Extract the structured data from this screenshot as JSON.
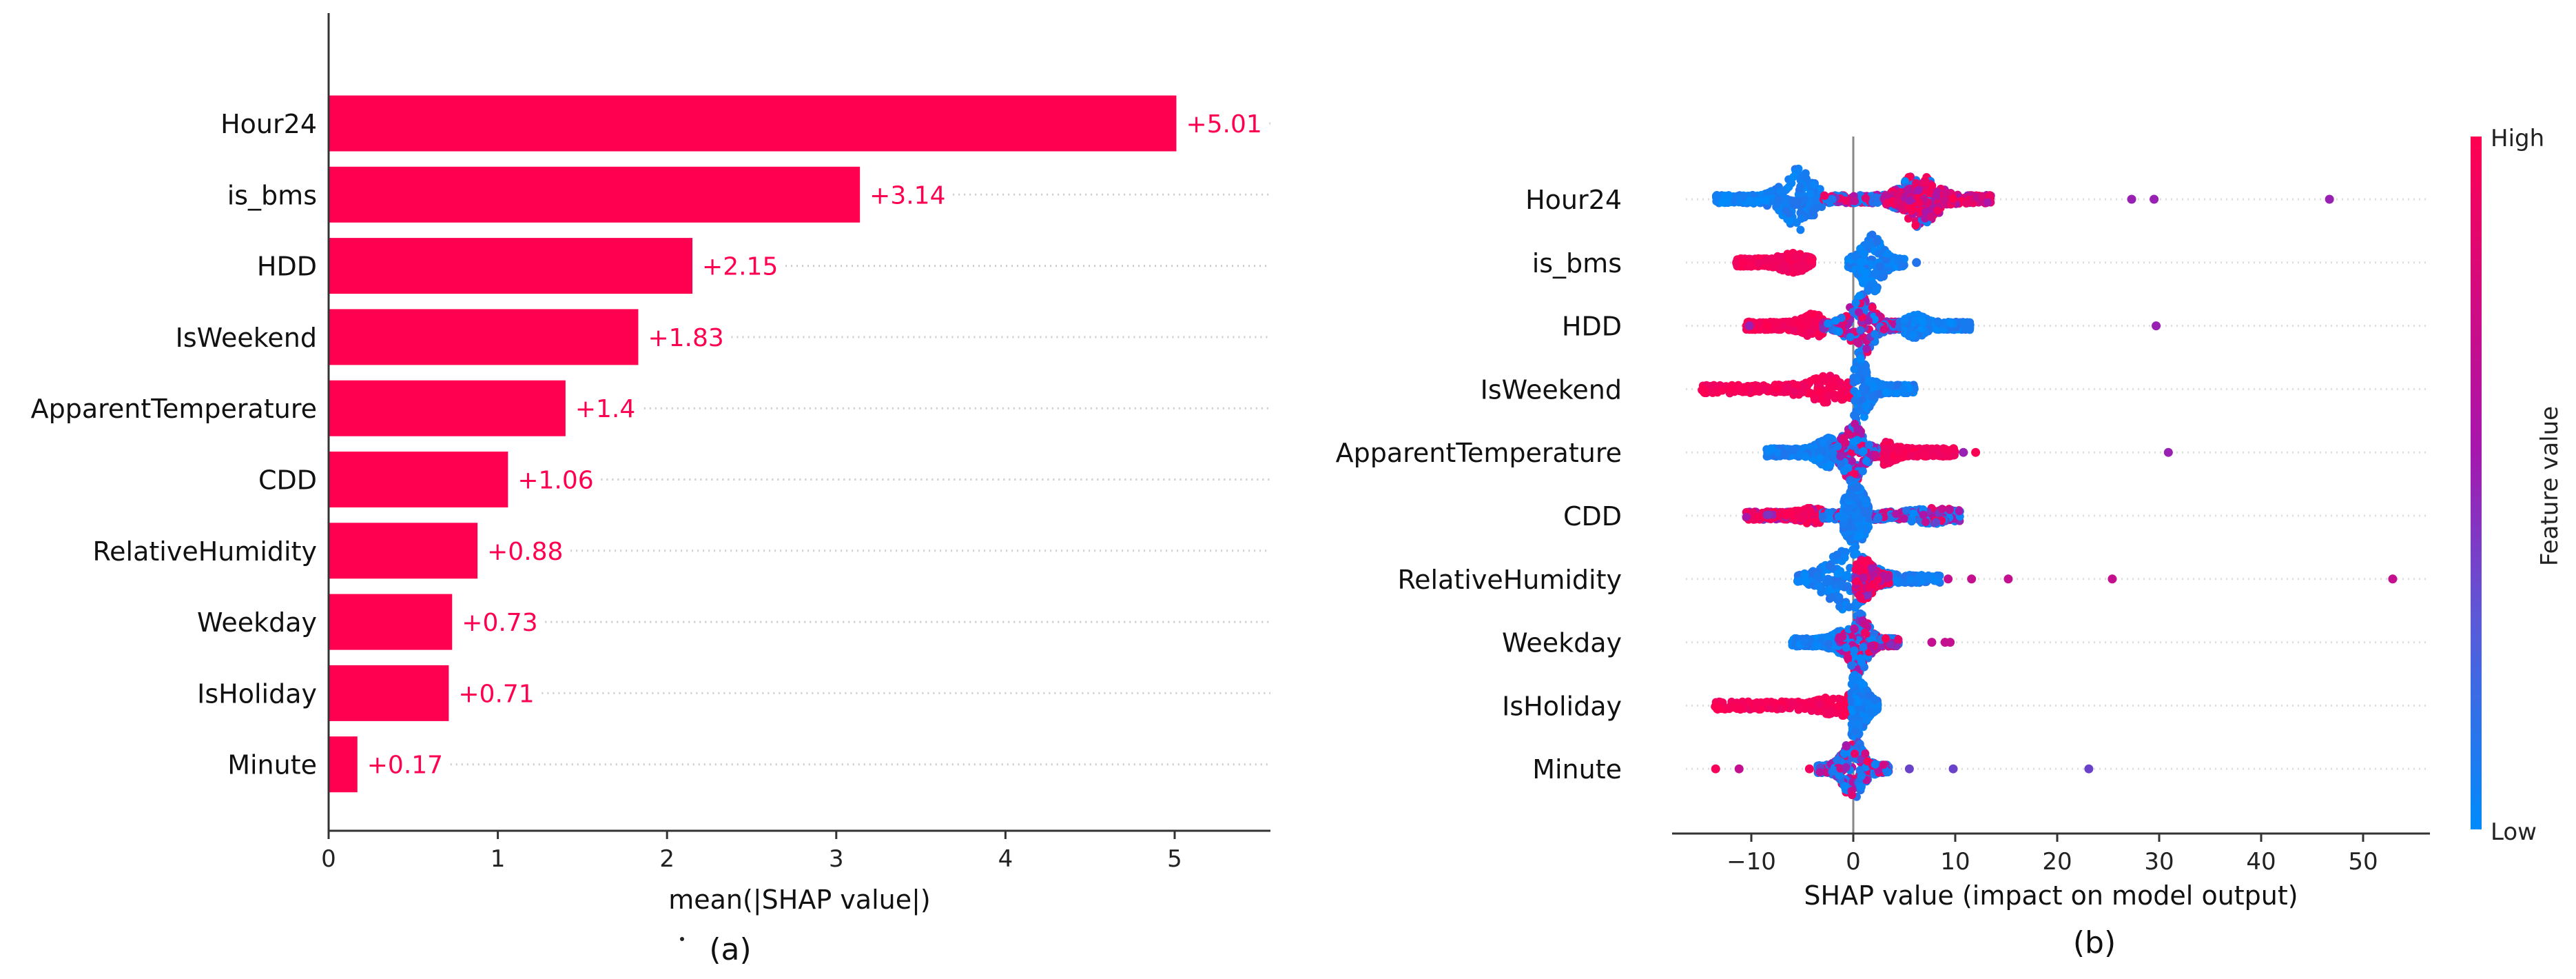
{
  "colors": {
    "bar": "#ff0051",
    "value_label": "#ff0051",
    "low": "#008bfb",
    "mid": "#a716ad",
    "high": "#ff0051"
  },
  "chart_data": [
    {
      "type": "bar",
      "orientation": "horizontal",
      "panel_label": "(a)",
      "categories": [
        "Hour24",
        "is_bms",
        "HDD",
        "IsWeekend",
        "ApparentTemperature",
        "CDD",
        "RelativeHumidity",
        "Weekday",
        "IsHoliday",
        "Minute"
      ],
      "values": [
        5.01,
        3.14,
        2.15,
        1.83,
        1.4,
        1.06,
        0.88,
        0.73,
        0.71,
        0.17
      ],
      "value_labels": [
        "+5.01",
        "+3.14",
        "+2.15",
        "+1.83",
        "+1.4",
        "+1.06",
        "+0.88",
        "+0.73",
        "+0.71",
        "+0.17"
      ],
      "xlabel": "mean(|SHAP value|)",
      "xlim": [
        0,
        5.5
      ],
      "xticks": [
        0,
        1,
        2,
        3,
        4,
        5
      ],
      "grid": "dotted row guides"
    },
    {
      "type": "scatter",
      "subtype": "beeswarm",
      "panel_label": "(b)",
      "categories": [
        "Hour24",
        "is_bms",
        "HDD",
        "IsWeekend",
        "ApparentTemperature",
        "CDD",
        "RelativeHumidity",
        "Weekday",
        "IsHoliday",
        "Minute"
      ],
      "xlabel": "SHAP value (impact on model output)",
      "xlim": [
        -18,
        56
      ],
      "xticks": [
        -10,
        0,
        10,
        20,
        30,
        40,
        50
      ],
      "colorbar": {
        "label": "Feature value",
        "high": "High",
        "low": "Low"
      },
      "features": [
        {
          "name": "Hour24",
          "clusters": [
            {
              "range": [
                -13.5,
                -3
              ],
              "color": "low",
              "peak": -5.5,
              "density": 1.0
            },
            {
              "range": [
                -3,
                8
              ],
              "color": "mixed",
              "peak": 6.5,
              "density": 0.9
            },
            {
              "range": [
                3,
                13.5
              ],
              "color": "mixed_high",
              "peak": 7,
              "density": 0.6
            }
          ],
          "outliers": [
            {
              "x": 27.3,
              "color": "mid"
            },
            {
              "x": 29.5,
              "color": "mid"
            },
            {
              "x": 46.7,
              "color": "mid"
            }
          ]
        },
        {
          "name": "is_bms",
          "clusters": [
            {
              "range": [
                -11.5,
                -4
              ],
              "color": "high",
              "peak": -6,
              "density": 0.25
            },
            {
              "range": [
                -0.5,
                5
              ],
              "color": "low",
              "peak": 1.8,
              "density": 1.0
            }
          ],
          "outliers": [
            {
              "x": 6.2,
              "color": "low"
            }
          ]
        },
        {
          "name": "HDD",
          "clusters": [
            {
              "range": [
                -10.5,
                -3
              ],
              "color": "high",
              "peak": -4,
              "density": 0.3
            },
            {
              "range": [
                -3,
                5
              ],
              "color": "mixed",
              "peak": 0.8,
              "density": 1.0
            },
            {
              "range": [
                5,
                11.5
              ],
              "color": "low",
              "peak": 6,
              "density": 0.3
            }
          ],
          "outliers": [
            {
              "x": -10.2,
              "color": "mid"
            },
            {
              "x": 29.7,
              "color": "mid"
            }
          ]
        },
        {
          "name": "IsWeekend",
          "clusters": [
            {
              "range": [
                -15,
                -0.3
              ],
              "color": "high",
              "peak": -2.5,
              "density": 0.35
            },
            {
              "range": [
                0,
                6
              ],
              "color": "low",
              "peak": 0.6,
              "density": 1.0
            }
          ],
          "outliers": []
        },
        {
          "name": "ApparentTemperature",
          "clusters": [
            {
              "range": [
                -8.5,
                -2
              ],
              "color": "low",
              "peak": -2.5,
              "density": 0.4
            },
            {
              "range": [
                -2,
                3
              ],
              "color": "mixed",
              "peak": 0,
              "density": 1.0
            },
            {
              "range": [
                3,
                10
              ],
              "color": "high",
              "peak": 3,
              "density": 0.3
            }
          ],
          "outliers": [
            {
              "x": 10.8,
              "color": "mid"
            },
            {
              "x": 12,
              "color": "high"
            },
            {
              "x": 30.9,
              "color": "mid"
            }
          ]
        },
        {
          "name": "CDD",
          "clusters": [
            {
              "range": [
                -10.5,
                -3
              ],
              "color": "high_mixed",
              "peak": -4,
              "density": 0.15
            },
            {
              "range": [
                -3,
                10.5
              ],
              "color": "mixed_low",
              "peak": 8,
              "density": 0.15
            },
            {
              "range": [
                -1,
                1.5
              ],
              "color": "low",
              "peak": 0.2,
              "density": 1.0
            }
          ],
          "outliers": []
        },
        {
          "name": "RelativeHumidity",
          "clusters": [
            {
              "range": [
                -5.5,
                8.5
              ],
              "color": "low",
              "peak": -0.5,
              "density": 1.0
            },
            {
              "range": [
                0.2,
                3.5
              ],
              "color": "high_mixed",
              "peak": 1,
              "density": 0.6
            }
          ],
          "outliers": [
            {
              "x": 9.3,
              "color": "high_mid"
            },
            {
              "x": 11.6,
              "color": "high_mid"
            },
            {
              "x": 15.2,
              "color": "high_mid"
            },
            {
              "x": 25.4,
              "color": "high_mid"
            },
            {
              "x": 52.9,
              "color": "high_mid"
            }
          ]
        },
        {
          "name": "Weekday",
          "clusters": [
            {
              "range": [
                -6,
                -1
              ],
              "color": "low",
              "peak": -1,
              "density": 0.3
            },
            {
              "range": [
                -1.5,
                4.5
              ],
              "color": "mixed",
              "peak": 0.5,
              "density": 1.0
            }
          ],
          "outliers": [
            {
              "x": 7.7,
              "color": "high_mid"
            },
            {
              "x": 9.0,
              "color": "high_mid"
            },
            {
              "x": 9.5,
              "color": "high_mid"
            }
          ]
        },
        {
          "name": "IsHoliday",
          "clusters": [
            {
              "range": [
                -13.7,
                -0.3
              ],
              "color": "high",
              "peak": -1,
              "density": 0.25
            },
            {
              "range": [
                -0.2,
                2.4
              ],
              "color": "low",
              "peak": 0.2,
              "density": 1.0
            }
          ],
          "outliers": []
        },
        {
          "name": "Minute",
          "clusters": [
            {
              "range": [
                -3.5,
                3.5
              ],
              "color": "mixed_low",
              "peak": 0,
              "density": 1.0
            }
          ],
          "outliers": [
            {
              "x": -13.5,
              "color": "high"
            },
            {
              "x": -11.2,
              "color": "high_mid"
            },
            {
              "x": -4.3,
              "color": "high"
            },
            {
              "x": 5.5,
              "color": "lowmid"
            },
            {
              "x": 9.8,
              "color": "lowmid"
            },
            {
              "x": 23.1,
              "color": "lowmid"
            }
          ]
        }
      ]
    }
  ]
}
